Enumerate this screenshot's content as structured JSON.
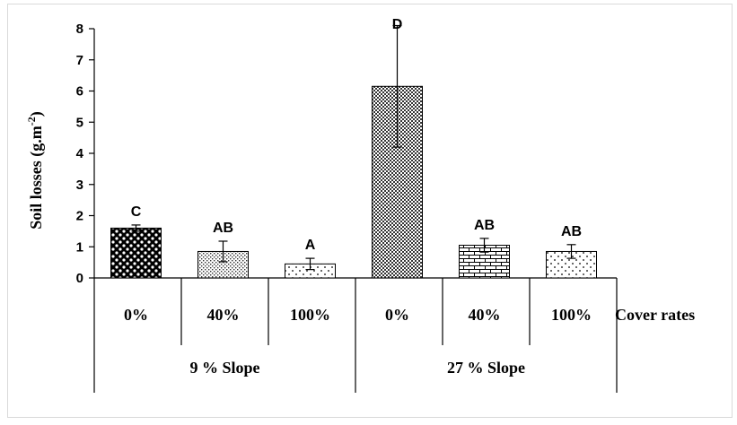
{
  "chart_data": {
    "type": "bar",
    "ylabel": "Soil losses (g.m",
    "ylabel_sup": "-2",
    "ylabel_close": ")",
    "xlabel": "Cover rates",
    "ylim": [
      0,
      8
    ],
    "yticks": [
      "0",
      "1",
      "2",
      "3",
      "4",
      "5",
      "6",
      "7",
      "8"
    ],
    "groups": [
      {
        "name": "9 % Slope",
        "bars": [
          0,
          1,
          2
        ]
      },
      {
        "name": "27 % Slope",
        "bars": [
          3,
          4,
          5
        ]
      }
    ],
    "bars": [
      {
        "category": "0%",
        "group": "9 % Slope",
        "value": 1.6,
        "error": 0.1,
        "label": "C",
        "pattern": "checker-dots"
      },
      {
        "category": "40%",
        "group": "9 % Slope",
        "value": 0.85,
        "error": 0.33,
        "label": "AB",
        "pattern": "dots"
      },
      {
        "category": "100%",
        "group": "9 % Slope",
        "value": 0.45,
        "error": 0.18,
        "label": "A",
        "pattern": "sparse-dots"
      },
      {
        "category": "0%",
        "group": "27 % Slope",
        "value": 6.15,
        "error": 1.95,
        "label": "D",
        "pattern": "checker"
      },
      {
        "category": "40%",
        "group": "27 % Slope",
        "value": 1.05,
        "error": 0.22,
        "label": "AB",
        "pattern": "brick"
      },
      {
        "category": "100%",
        "group": "27 % Slope",
        "value": 0.85,
        "error": 0.22,
        "label": "AB",
        "pattern": "sparse-dots"
      }
    ]
  }
}
